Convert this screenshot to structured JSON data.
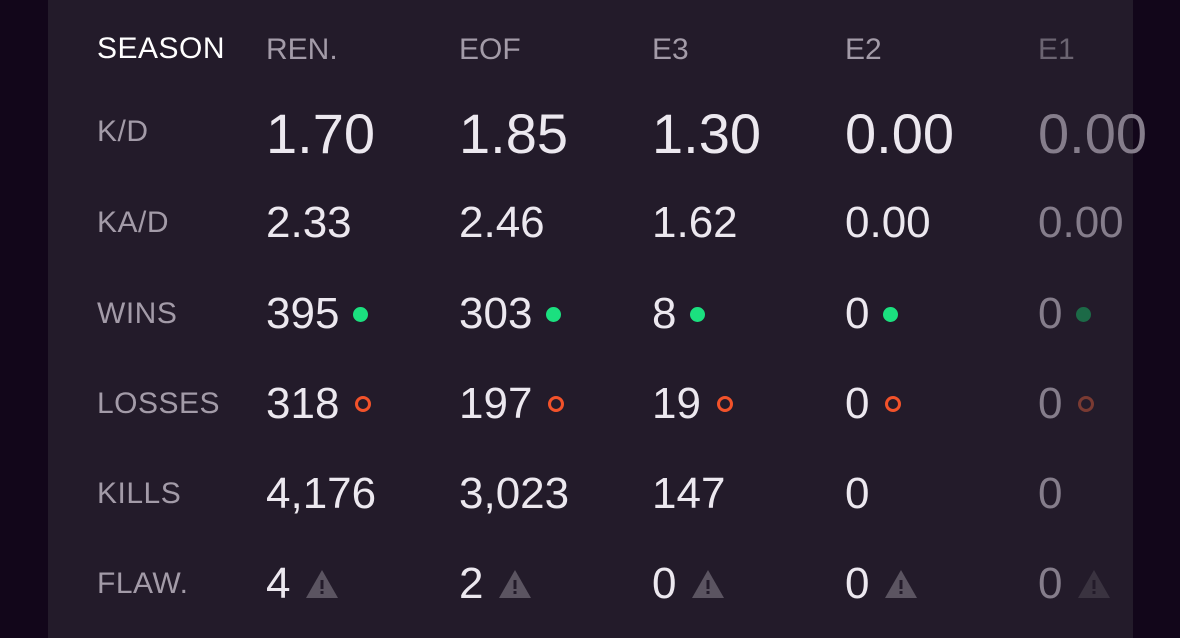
{
  "header": {
    "row_label": "SEASON",
    "seasons": [
      "REN.",
      "EOF",
      "E3",
      "E2",
      "E1"
    ]
  },
  "rows": [
    {
      "label": "K/D",
      "values": [
        "1.70",
        "1.85",
        "1.30",
        "0.00",
        "0.00"
      ]
    },
    {
      "label": "KA/D",
      "values": [
        "2.33",
        "2.46",
        "1.62",
        "0.00",
        "0.00"
      ]
    },
    {
      "label": "WINS",
      "values": [
        "395",
        "303",
        "8",
        "0",
        "0"
      ],
      "icon": "green-dot-icon"
    },
    {
      "label": "LOSSES",
      "values": [
        "318",
        "197",
        "19",
        "0",
        "0"
      ],
      "icon": "red-ring-icon"
    },
    {
      "label": "KILLS",
      "values": [
        "4,176",
        "3,023",
        "147",
        "0",
        "0"
      ]
    },
    {
      "label": "FLAW.",
      "values": [
        "4",
        "2",
        "0",
        "0",
        "0"
      ],
      "icon": "warning-triangle-icon"
    }
  ],
  "colors": {
    "background": "#12061a",
    "panel": "#231b2a",
    "win": "#1be07f",
    "loss": "#f2522a"
  }
}
